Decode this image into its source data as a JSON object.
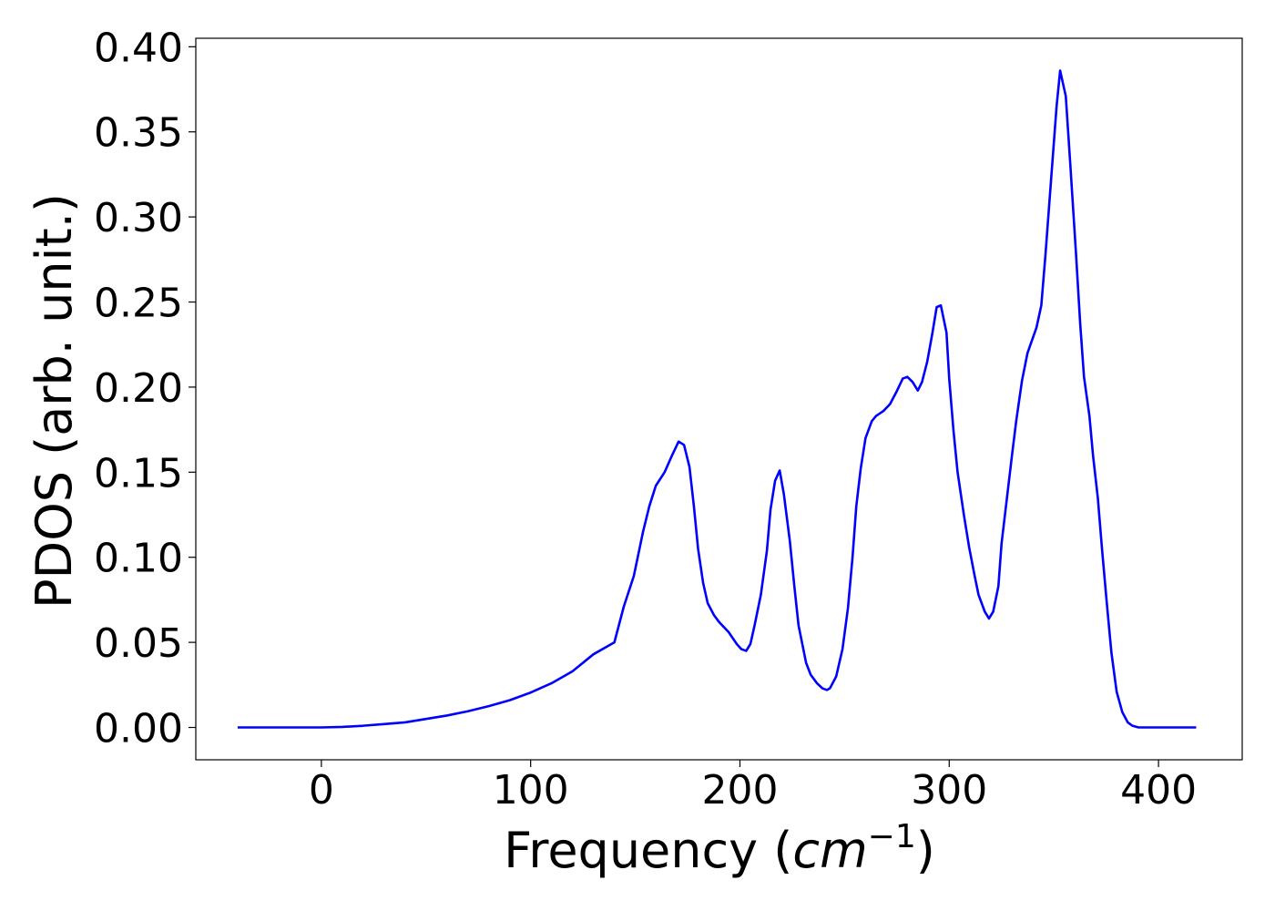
{
  "chart_data": {
    "type": "line",
    "xlabel": [
      "Frequency (",
      "cm",
      "−1",
      ")"
    ],
    "ylabel": "PDOS (arb. unit.)",
    "xlim": [
      -60,
      440
    ],
    "ylim": [
      -0.019,
      0.405
    ],
    "xticks": [
      0,
      100,
      200,
      300,
      400
    ],
    "yticks": [
      {
        "value": 0,
        "label": "0.00"
      },
      {
        "value": 0.05,
        "label": "0.05"
      },
      {
        "value": 0.1,
        "label": "0.10"
      },
      {
        "value": 0.15,
        "label": "0.15"
      },
      {
        "value": 0.2,
        "label": "0.20"
      },
      {
        "value": 0.25,
        "label": "0.25"
      },
      {
        "value": 0.3,
        "label": "0.30"
      },
      {
        "value": 0.35,
        "label": "0.35"
      },
      {
        "value": 0.4,
        "label": "0.40"
      }
    ],
    "x": [
      -40,
      0,
      10,
      20,
      30,
      40,
      50,
      60,
      70,
      80,
      90,
      100,
      110,
      120,
      130,
      140,
      144.5,
      149.3,
      153.7,
      156.7,
      159.8,
      164,
      167.6,
      170.7,
      173.3,
      175.9,
      178,
      180,
      182.4,
      184.6,
      187.6,
      190,
      194.6,
      198.5,
      200.7,
      203,
      205,
      207,
      210,
      212.9,
      214.6,
      216.8,
      219,
      221,
      223.8,
      226,
      228,
      230.3,
      231.6,
      233.8,
      236.8,
      239.4,
      241.6,
      243,
      246,
      249,
      251.6,
      253.8,
      255.6,
      257.7,
      260,
      263,
      265,
      268.6,
      271.7,
      274.7,
      277.8,
      280,
      282.5,
      285,
      287,
      289.5,
      292,
      294,
      296,
      298.7,
      300,
      302,
      304,
      307,
      309.5,
      312,
      314,
      317,
      319,
      321,
      323.5,
      325,
      330,
      332,
      334.8,
      337.4,
      341.7,
      344,
      346,
      351.3,
      353,
      355.7,
      357.9,
      360.5,
      362.6,
      364.4,
      367,
      368.7,
      371,
      373,
      375.3,
      377.5,
      380,
      382.7,
      385.3,
      387.5,
      390.5,
      418
    ],
    "series": [
      {
        "color": "#0000ff",
        "values": [
          0,
          0,
          0.0003,
          0.001,
          0.002,
          0.003,
          0.005,
          0.007,
          0.0095,
          0.0125,
          0.016,
          0.0205,
          0.026,
          0.033,
          0.043,
          0.05,
          0.071,
          0.089,
          0.115,
          0.13,
          0.142,
          0.15,
          0.16,
          0.168,
          0.166,
          0.153,
          0.13,
          0.105,
          0.085,
          0.073,
          0.066,
          0.062,
          0.056,
          0.049,
          0.046,
          0.045,
          0.049,
          0.06,
          0.078,
          0.104,
          0.128,
          0.145,
          0.151,
          0.137,
          0.11,
          0.083,
          0.06,
          0.046,
          0.038,
          0.031,
          0.026,
          0.023,
          0.022,
          0.023,
          0.03,
          0.046,
          0.07,
          0.1,
          0.13,
          0.152,
          0.17,
          0.18,
          0.183,
          0.186,
          0.19,
          0.197,
          0.205,
          0.206,
          0.203,
          0.198,
          0.203,
          0.215,
          0.232,
          0.247,
          0.248,
          0.232,
          0.205,
          0.175,
          0.15,
          0.125,
          0.106,
          0.09,
          0.078,
          0.068,
          0.064,
          0.068,
          0.083,
          0.108,
          0.16,
          0.18,
          0.204,
          0.22,
          0.235,
          0.248,
          0.278,
          0.365,
          0.386,
          0.371,
          0.33,
          0.28,
          0.237,
          0.206,
          0.183,
          0.16,
          0.135,
          0.105,
          0.073,
          0.044,
          0.021,
          0.009,
          0.003,
          0.001,
          0,
          0
        ]
      }
    ]
  }
}
